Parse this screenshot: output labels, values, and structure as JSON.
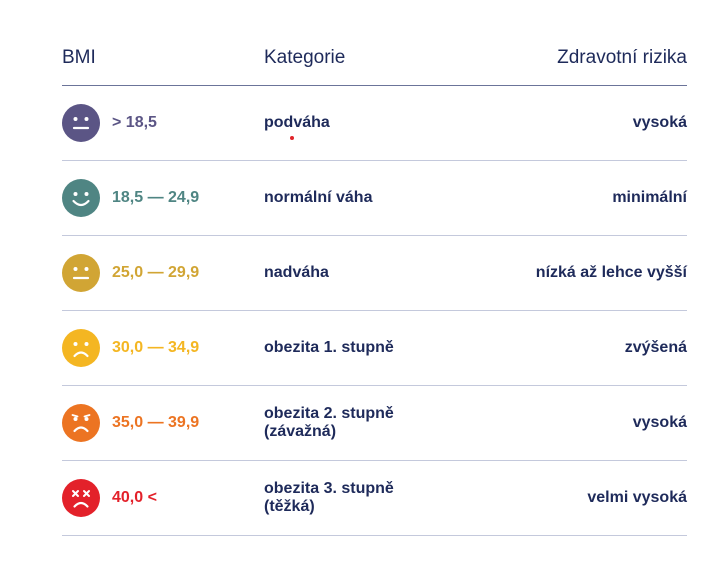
{
  "header": {
    "bmi": "BMI",
    "category": "Kategorie",
    "risks": "Zdravotní rizika"
  },
  "rows": [
    {
      "range": "> 18,5",
      "category": "podváha",
      "risk": "vysoká",
      "color": "#5b5585",
      "face": "neutral-face-icon"
    },
    {
      "range": "18,5 — 24,9",
      "category": "normální váha",
      "risk": "minimální",
      "color": "#4f8583",
      "face": "smiling-face-icon"
    },
    {
      "range": "25,0 — 29,9",
      "category": "nadváha",
      "risk": "nízká až lehce vyšší",
      "color": "#d1a534",
      "face": "neutral-face-icon"
    },
    {
      "range": "30,0 — 34,9",
      "category": "obezita 1. stupně",
      "risk": "zvýšená",
      "color": "#f4b622",
      "face": "frowning-face-icon"
    },
    {
      "range": "35,0 — 39,9",
      "category": "obezita 2. stupně (závažná)",
      "risk": "vysoká",
      "color": "#ec7422",
      "face": "frowning-face-icon"
    },
    {
      "range": "40,0 <",
      "category": "obezita 3. stupně (těžká)",
      "risk": "velmi vysoká",
      "color": "#e3212a",
      "face": "dizzy-face-icon"
    }
  ]
}
